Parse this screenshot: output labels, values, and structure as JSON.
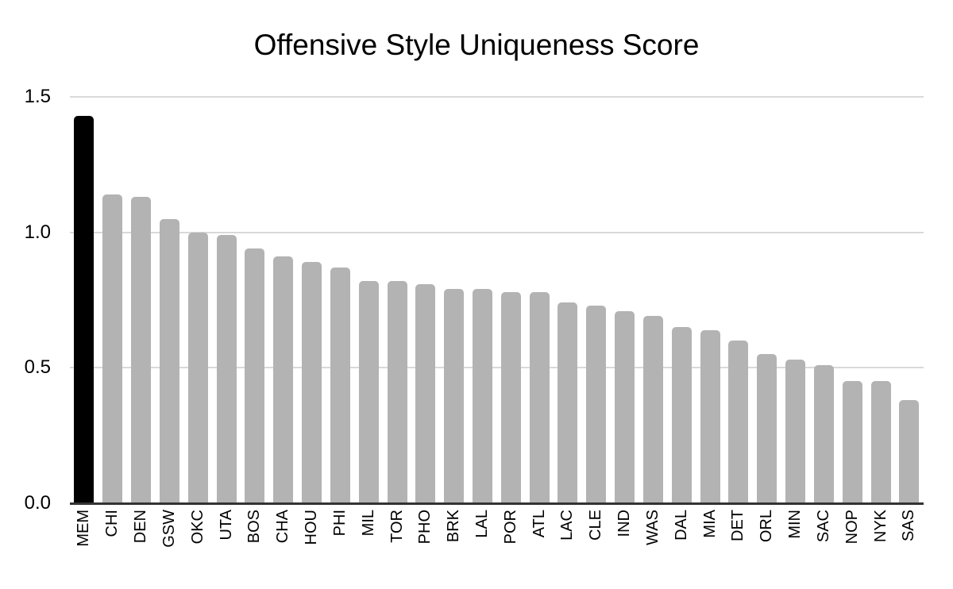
{
  "chart_data": {
    "type": "bar",
    "title": "Offensive Style Uniqueness Score",
    "categories": [
      "MEM",
      "CHI",
      "DEN",
      "GSW",
      "OKC",
      "UTA",
      "BOS",
      "CHA",
      "HOU",
      "PHI",
      "MIL",
      "TOR",
      "PHO",
      "BRK",
      "LAL",
      "POR",
      "ATL",
      "LAC",
      "CLE",
      "IND",
      "WAS",
      "DAL",
      "MIA",
      "DET",
      "ORL",
      "MIN",
      "SAC",
      "NOP",
      "NYK",
      "SAS"
    ],
    "values": [
      1.43,
      1.14,
      1.13,
      1.05,
      1.0,
      0.99,
      0.94,
      0.91,
      0.89,
      0.87,
      0.82,
      0.82,
      0.81,
      0.79,
      0.79,
      0.78,
      0.78,
      0.74,
      0.73,
      0.71,
      0.69,
      0.65,
      0.64,
      0.6,
      0.55,
      0.53,
      0.51,
      0.45,
      0.45,
      0.38
    ],
    "xlabel": "",
    "ylabel": "",
    "ylim": [
      0,
      1.5
    ],
    "yticks": [
      0.0,
      0.5,
      1.0,
      1.5
    ],
    "ytick_labels": [
      "0.0",
      "0.5",
      "1.0",
      "1.5"
    ],
    "grid": true,
    "legend_position": "none",
    "highlight": {
      "category": "MEM",
      "color": "#000000"
    },
    "colors": {
      "bar": "#b3b3b3",
      "highlight": "#000000",
      "gridline": "#d9d9d9",
      "axis_line": "#333333",
      "text": "#000000",
      "background": "#ffffff"
    }
  }
}
